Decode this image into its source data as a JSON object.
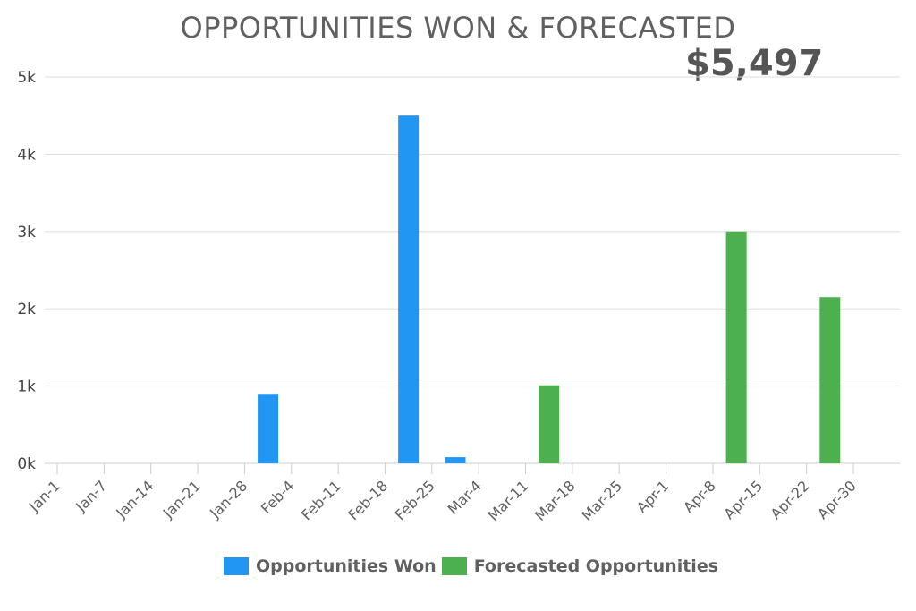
{
  "chart_data": {
    "type": "bar",
    "title": "OPPORTUNITIES WON & FORECASTED",
    "headline_total": "$5,497",
    "xlabel": "",
    "ylabel": "",
    "ylim": [
      0,
      5000
    ],
    "y_ticks": [
      0,
      1000,
      2000,
      3000,
      4000,
      5000
    ],
    "y_tick_labels": [
      "0k",
      "1k",
      "2k",
      "3k",
      "4k",
      "5k"
    ],
    "grid": true,
    "legend_placement": "bottom",
    "categories": [
      "Jan-1",
      "Jan-7",
      "Jan-14",
      "Jan-21",
      "Jan-28",
      "Feb-4",
      "Feb-11",
      "Feb-18",
      "Feb-25",
      "Mar-4",
      "Mar-11",
      "Mar-18",
      "Mar-25",
      "Apr-1",
      "Apr-8",
      "Apr-15",
      "Apr-22",
      "Apr-30"
    ],
    "series": [
      {
        "name": "Opportunities Won",
        "color": "#2196f3",
        "values": [
          0,
          0,
          0,
          0,
          900,
          0,
          0,
          4500,
          80,
          0,
          0,
          0,
          0,
          0,
          0,
          0,
          0,
          0
        ]
      },
      {
        "name": "Forecasted Opportunities",
        "color": "#4caf50",
        "values": [
          0,
          0,
          0,
          0,
          0,
          0,
          0,
          0,
          0,
          0,
          1010,
          0,
          0,
          0,
          3000,
          0,
          2150,
          0
        ]
      }
    ]
  }
}
